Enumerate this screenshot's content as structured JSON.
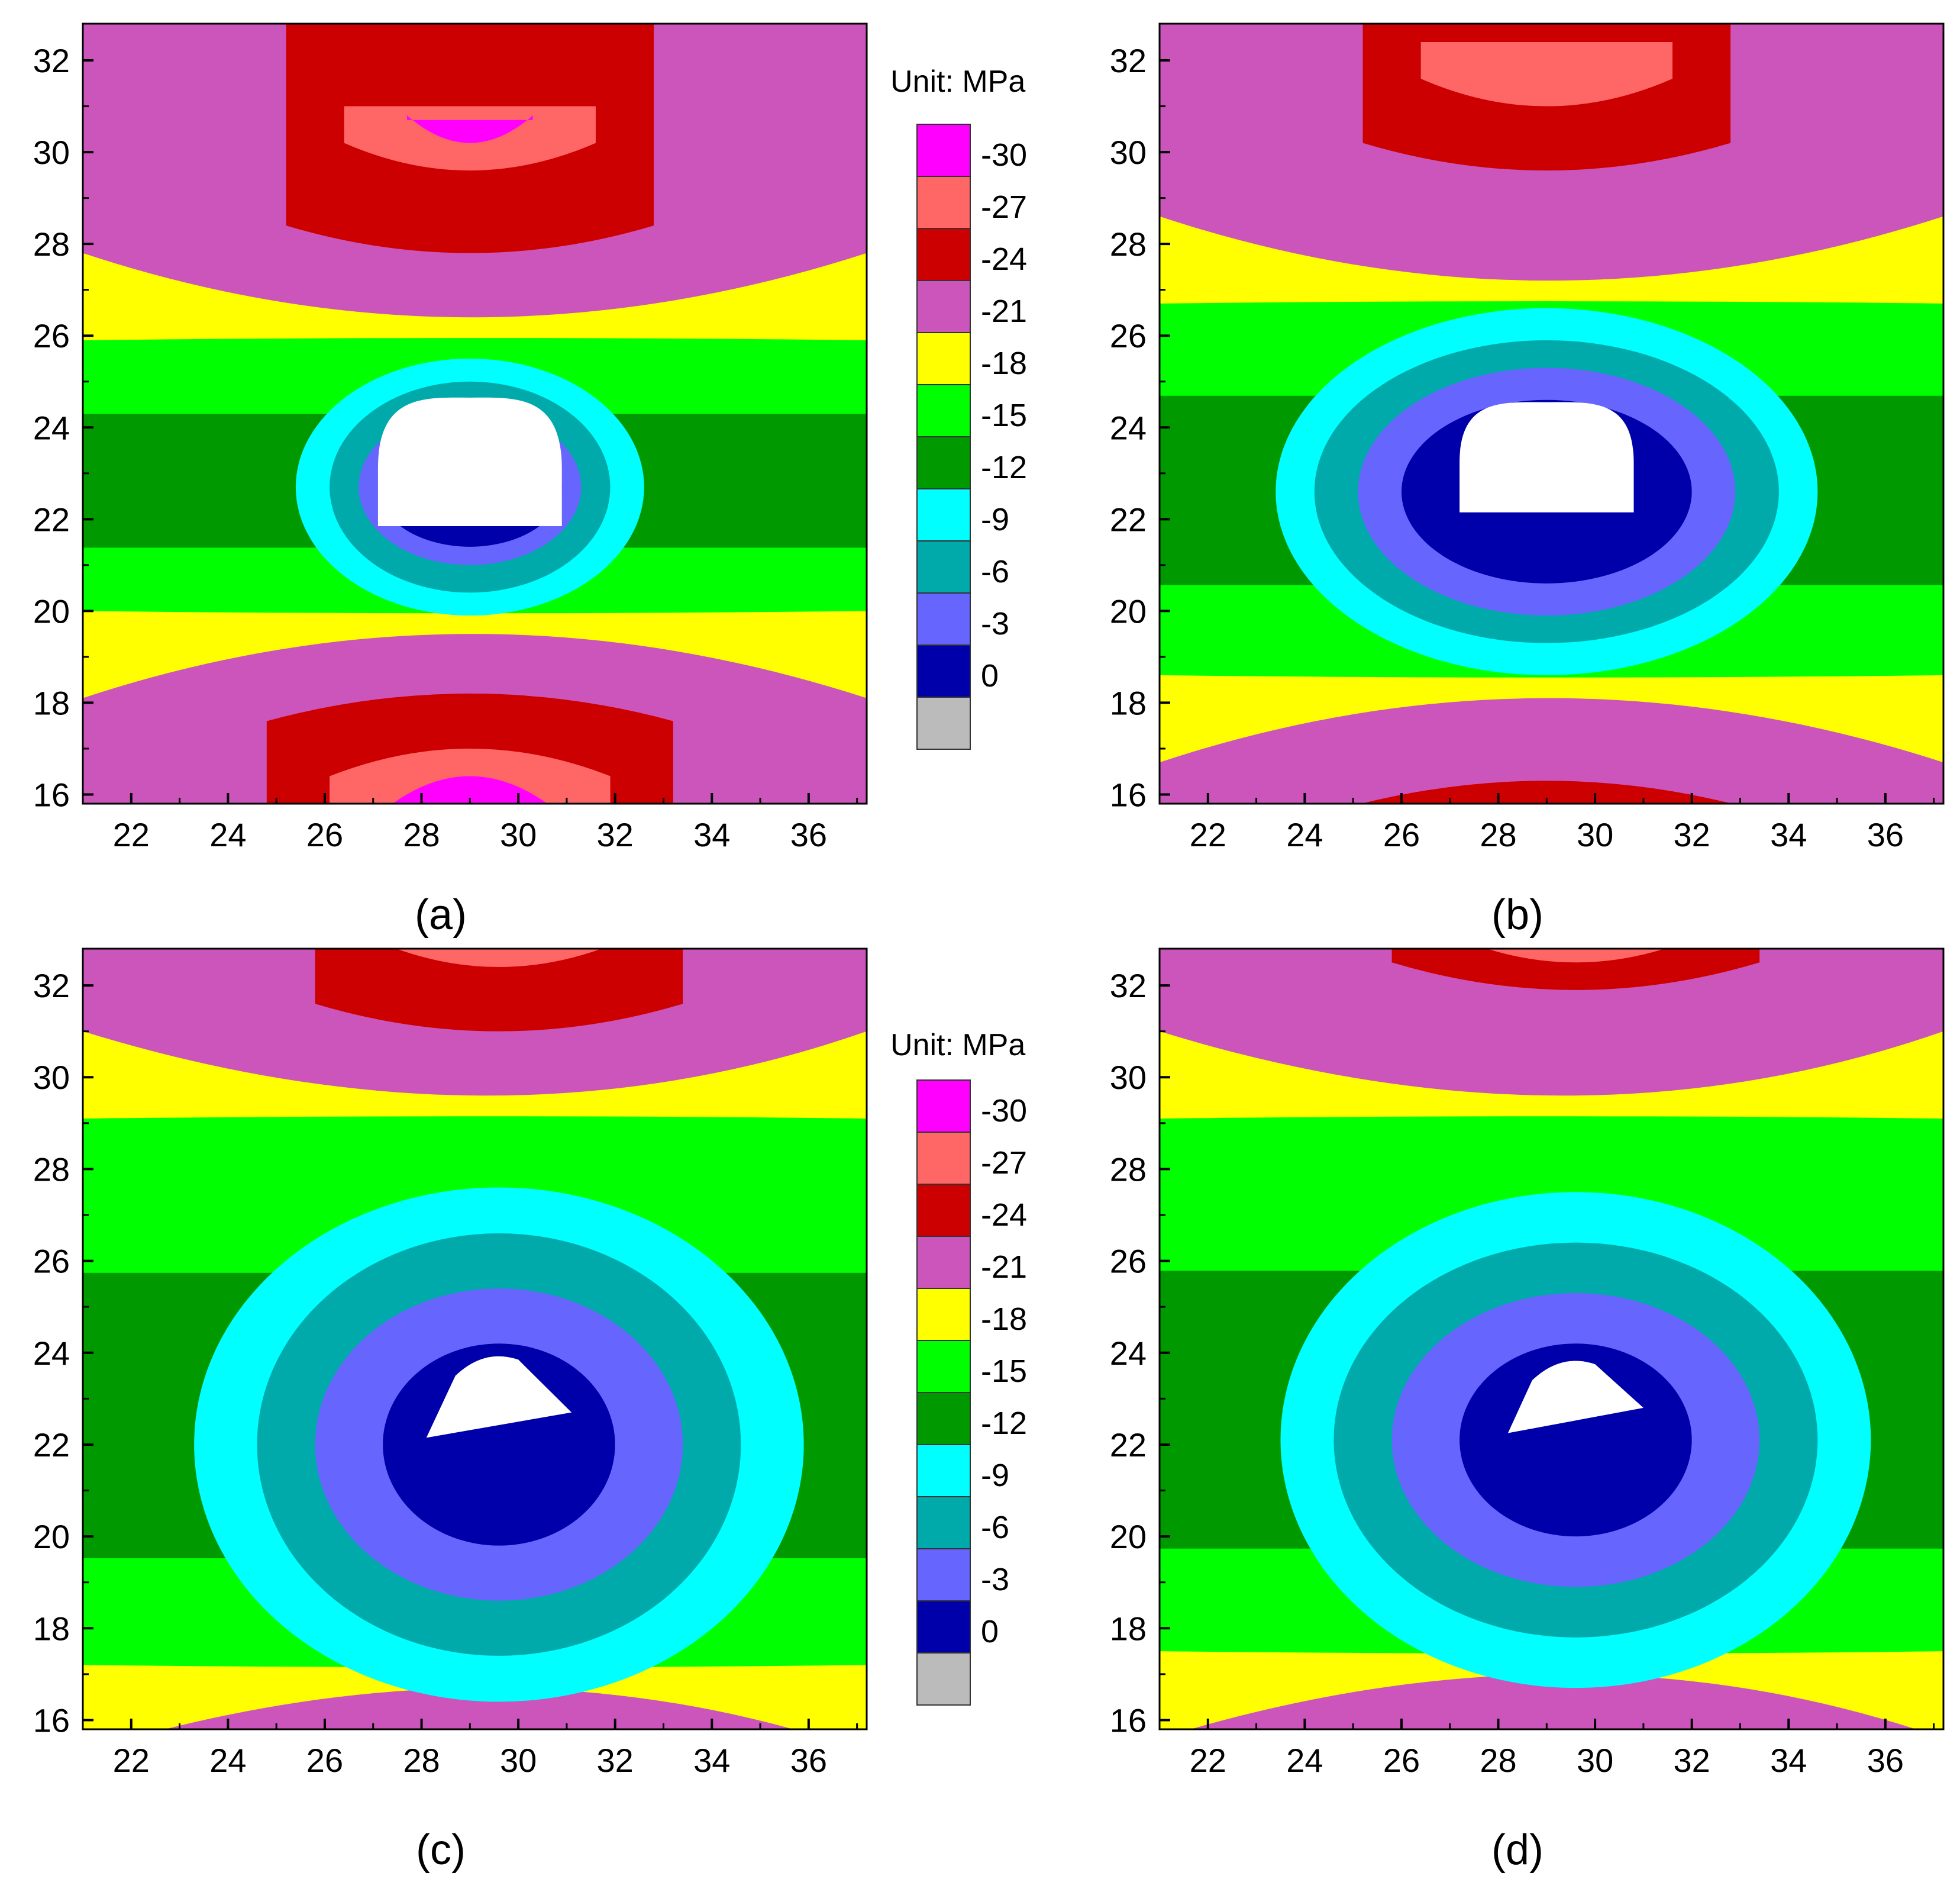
{
  "figure": {
    "panel_labels": [
      "(a)",
      "(b)",
      "(c)",
      "(d)"
    ],
    "legend_title": "Unit: MPa"
  },
  "chart_data": [
    {
      "panel": "(a)",
      "type": "heatmap",
      "xlim": [
        21,
        37.2
      ],
      "ylim": [
        15.8,
        32.8
      ],
      "xticks": [
        22,
        24,
        26,
        28,
        30,
        32,
        34,
        36
      ],
      "yticks": [
        16,
        18,
        20,
        22,
        24,
        26,
        28,
        30,
        32
      ],
      "legend": {
        "title": "Unit: MPa",
        "levels": [
          "-30",
          "-27",
          "-24",
          "-21",
          "-18",
          "-15",
          "-12",
          "-9",
          "-6",
          "-3",
          "0"
        ],
        "colors": [
          "#FF00FF",
          "#FF6666",
          "#CC0000",
          "#CC55BB",
          "#FFFF00",
          "#00FF00",
          "#009900",
          "#00FFFF",
          "#00AAAA",
          "#6666FF",
          "#0000AA",
          "#BBBBBB"
        ]
      },
      "opening": {
        "x_center": 29.0,
        "floor_y": 21.85,
        "crown_y": 24.65,
        "half_width": 1.9,
        "shape": "horseshoe"
      },
      "zones_top": {
        "yellow_inner": 25.6,
        "magenta": 26.8,
        "red": 27.8,
        "pink": 29.6,
        "core": 30.2
      },
      "zones_bottom": {
        "yellow_inner": 20.3,
        "magenta": 19.0,
        "red": 18.2,
        "pink": 17.0,
        "core": 16.4
      },
      "ring": {
        "center_y": 22.7,
        "radii_x": [
          1.9,
          2.3,
          2.9,
          3.6
        ],
        "radii_y": [
          1.3,
          1.7,
          2.3,
          2.8
        ]
      }
    },
    {
      "panel": "(b)",
      "type": "heatmap",
      "xlim": [
        21,
        37.2
      ],
      "ylim": [
        15.8,
        32.8
      ],
      "xticks": [
        22,
        24,
        26,
        28,
        30,
        32,
        34,
        36
      ],
      "yticks": [
        16,
        18,
        20,
        22,
        24,
        26,
        28,
        30,
        32
      ],
      "legend": null,
      "opening": {
        "x_center": 29.0,
        "floor_y": 22.15,
        "crown_y": 24.55,
        "half_width": 1.8,
        "shape": "horseshoe"
      },
      "zones_top": {
        "yellow_inner": 26.4,
        "magenta": 28.2,
        "red": 29.6,
        "pink": 31.0,
        "core": null
      },
      "zones_bottom": {
        "yellow_inner": 18.9,
        "magenta": 17.4,
        "red": 16.3,
        "pink": null,
        "core": null
      },
      "ring": {
        "center_y": 22.6,
        "radii_x": [
          3.0,
          3.9,
          4.8,
          5.6
        ],
        "radii_y": [
          2.0,
          2.7,
          3.3,
          4.0
        ]
      }
    },
    {
      "panel": "(c)",
      "type": "heatmap",
      "xlim": [
        21,
        37.2
      ],
      "ylim": [
        15.8,
        32.8
      ],
      "xticks": [
        22,
        24,
        26,
        28,
        30,
        32,
        34,
        36
      ],
      "yticks": [
        16,
        18,
        20,
        22,
        24,
        26,
        28,
        30,
        32
      ],
      "legend": {
        "title": "Unit: MPa",
        "levels": [
          "-30",
          "-27",
          "-24",
          "-21",
          "-18",
          "-15",
          "-12",
          "-9",
          "-6",
          "-3",
          "0"
        ],
        "colors": [
          "#FF00FF",
          "#FF6666",
          "#CC0000",
          "#CC55BB",
          "#FFFF00",
          "#00FF00",
          "#009900",
          "#00FFFF",
          "#00AAAA",
          "#6666FF",
          "#0000AA",
          "#BBBBBB"
        ]
      },
      "opening": {
        "x_center": 29.6,
        "floor_y": 22.5,
        "crown_y": 24.0,
        "half_width": 1.5,
        "shape": "skewed"
      },
      "zones_top": {
        "yellow_inner": 28.8,
        "magenta": 30.0,
        "red": 31.0,
        "pink": 32.4,
        "core": null
      },
      "zones_bottom": {
        "yellow_inner": 17.5,
        "magenta": 16.3,
        "red": null,
        "pink": null,
        "core": null
      },
      "ring": {
        "center_y": 22.0,
        "radii_x": [
          2.4,
          3.8,
          5.0,
          6.3
        ],
        "radii_y": [
          2.2,
          3.4,
          4.6,
          5.6
        ]
      }
    },
    {
      "panel": "(d)",
      "type": "heatmap",
      "xlim": [
        21,
        37.2
      ],
      "ylim": [
        15.8,
        32.8
      ],
      "xticks": [
        22,
        24,
        26,
        28,
        30,
        32,
        34,
        36
      ],
      "yticks": [
        16,
        18,
        20,
        22,
        24,
        26,
        28,
        30,
        32
      ],
      "legend": null,
      "opening": {
        "x_center": 29.6,
        "floor_y": 22.6,
        "crown_y": 23.9,
        "half_width": 1.4,
        "shape": "skewed"
      },
      "zones_top": {
        "yellow_inner": 28.8,
        "magenta": 30.7,
        "red": 31.9,
        "pink": 32.5,
        "core": null
      },
      "zones_bottom": {
        "yellow_inner": 17.8,
        "magenta": 16.0,
        "red": null,
        "pink": null,
        "core": null
      },
      "ring": {
        "center_y": 22.1,
        "radii_x": [
          2.4,
          3.8,
          5.0,
          6.1
        ],
        "radii_y": [
          2.1,
          3.2,
          4.3,
          5.4
        ]
      }
    }
  ]
}
